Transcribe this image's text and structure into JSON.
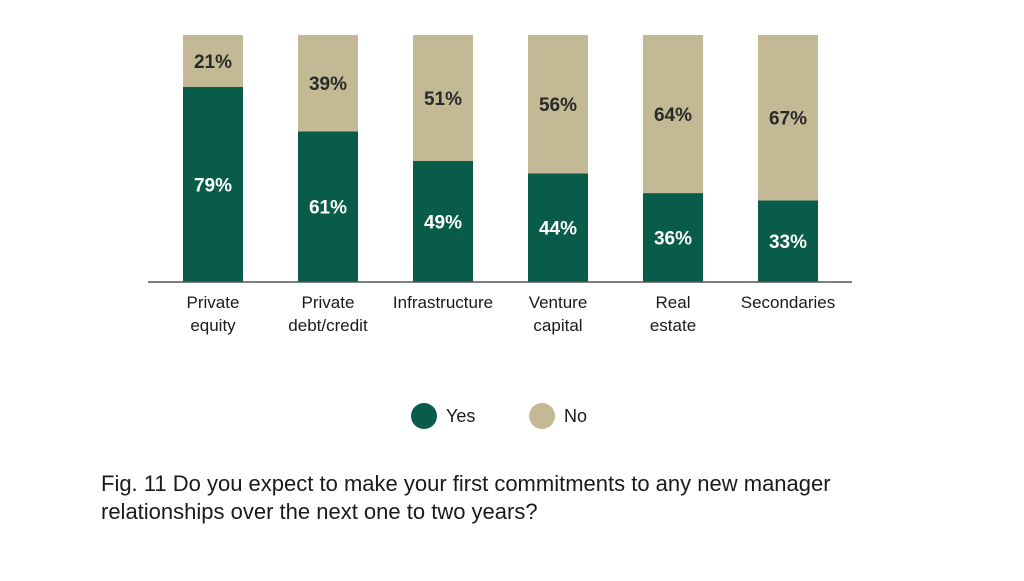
{
  "chart_data": {
    "type": "bar",
    "stacked": true,
    "categories": [
      [
        "Private",
        "equity"
      ],
      [
        "Private",
        "debt/credit"
      ],
      [
        "Infrastructure"
      ],
      [
        "Venture",
        "capital"
      ],
      [
        "Real",
        "estate"
      ],
      [
        "Secondaries"
      ]
    ],
    "series": [
      {
        "name": "Yes",
        "color": "#0a5c4a",
        "values": [
          79,
          61,
          49,
          44,
          36,
          33
        ]
      },
      {
        "name": "No",
        "color": "#c3b994",
        "values": [
          21,
          39,
          51,
          56,
          64,
          67
        ]
      }
    ],
    "value_suffix": "%",
    "ylim": [
      0,
      100
    ],
    "grid": false,
    "legend_position": "bottom"
  },
  "caption": "Fig. 11 Do you expect to make your first commitments to any new manager relationships over the next one to two years?"
}
